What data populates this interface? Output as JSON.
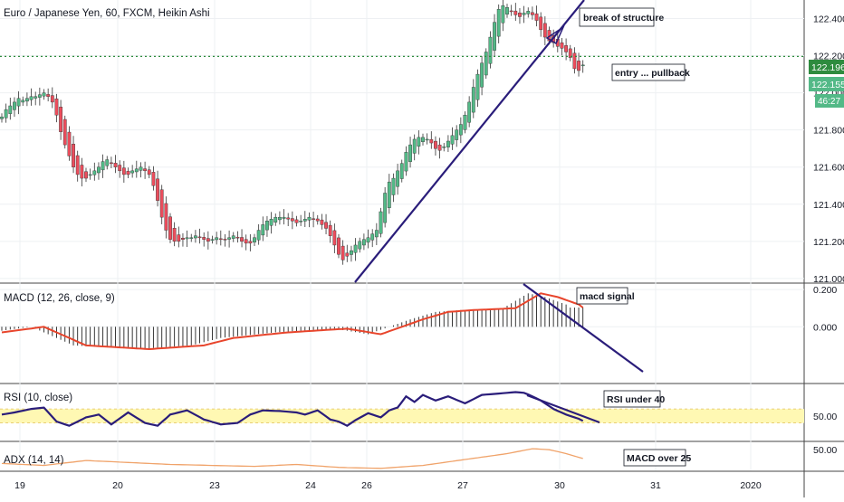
{
  "header": {
    "title": "Euro / Japanese Yen, 60, FXCM, Heikin Ashi"
  },
  "colors": {
    "bull": "#53b987",
    "bear": "#eb4d5c",
    "wick": "#333333",
    "trend": "#2a1d7a",
    "entry": "#2e8b3e",
    "macd_signal": "#e8452c",
    "rsi": "#2a1d7a",
    "rsi_band": "#fff8b3",
    "adx": "#f0a36a",
    "price_tag_entry": "#2e8b3e",
    "price_tag_last": "#53b987"
  },
  "chart_data": [
    {
      "type": "candlestick",
      "title": "Euro / Japanese Yen, 60, FXCM, Heikin Ashi",
      "ylim": [
        120.98,
        122.5
      ],
      "y_ticks": [
        "122.400",
        "122.200",
        "122.000",
        "121.800",
        "121.600",
        "121.400",
        "121.200",
        "121.000"
      ],
      "x_ticks": [
        "19",
        "20",
        "23",
        "24",
        "26",
        "27",
        "30",
        "31",
        "2020"
      ],
      "price_tags": {
        "entry": "122.196",
        "last": "122.155",
        "countdown": "46:27"
      },
      "annotations": [
        "break of structure",
        "entry ... pullback"
      ],
      "closes": [
        121.87,
        121.91,
        121.93,
        121.95,
        121.97,
        121.96,
        121.97,
        121.98,
        121.98,
        121.99,
        122.0,
        121.98,
        121.95,
        121.88,
        121.79,
        121.72,
        121.66,
        121.6,
        121.56,
        121.54,
        121.54,
        121.56,
        121.58,
        121.6,
        121.63,
        121.64,
        121.62,
        121.6,
        121.58,
        121.56,
        121.56,
        121.58,
        121.59,
        121.6,
        121.58,
        121.56,
        121.5,
        121.42,
        121.33,
        121.26,
        121.21,
        121.2,
        121.2,
        121.21,
        121.22,
        121.22,
        121.23,
        121.22,
        121.21,
        121.2,
        121.21,
        121.22,
        121.21,
        121.21,
        121.22,
        121.23,
        121.22,
        121.2,
        121.19,
        121.19,
        121.22,
        121.26,
        121.29,
        121.31,
        121.32,
        121.33,
        121.33,
        121.33,
        121.32,
        121.31,
        121.3,
        121.31,
        121.32,
        121.33,
        121.32,
        121.31,
        121.29,
        121.27,
        121.23,
        121.18,
        121.13,
        121.1,
        121.12,
        121.15,
        121.18,
        121.2,
        121.21,
        121.22,
        121.24,
        121.26,
        121.36,
        121.46,
        121.52,
        121.54,
        121.58,
        121.62,
        121.68,
        121.72,
        121.75,
        121.76,
        121.76,
        121.75,
        121.73,
        121.7,
        121.69,
        121.71,
        121.74,
        121.77,
        121.8,
        121.83,
        121.88,
        121.95,
        122.03,
        122.1,
        122.16,
        122.22,
        122.3,
        122.38,
        122.45,
        122.47,
        122.46,
        122.44,
        122.42,
        122.41,
        122.43,
        122.44,
        122.42,
        122.39,
        122.34,
        122.3,
        122.28,
        122.27,
        122.25,
        122.24,
        122.22,
        122.19,
        122.13,
        122.12,
        122.15
      ]
    },
    {
      "type": "histogram+line",
      "title": "MACD (12, 26, close, 9)",
      "ylim": [
        -0.3,
        0.23
      ],
      "y_ticks": [
        "0.200",
        "0.000"
      ],
      "annotations": [
        "macd signal"
      ],
      "signal_keyframes": [
        [
          0,
          -0.03
        ],
        [
          10,
          0.0
        ],
        [
          20,
          -0.1
        ],
        [
          35,
          -0.12
        ],
        [
          48,
          -0.1
        ],
        [
          55,
          -0.06
        ],
        [
          68,
          -0.03
        ],
        [
          82,
          -0.01
        ],
        [
          90,
          -0.04
        ],
        [
          100,
          0.04
        ],
        [
          106,
          0.08
        ],
        [
          112,
          0.09
        ],
        [
          122,
          0.1
        ],
        [
          128,
          0.18
        ],
        [
          132,
          0.16
        ],
        [
          137,
          0.12
        ],
        [
          140,
          0.07
        ]
      ]
    },
    {
      "type": "line",
      "title": "RSI (10, close)",
      "ylim": [
        15,
        95
      ],
      "y_ticks": [
        "50.00"
      ],
      "band": [
        40,
        60
      ],
      "annotations": [
        "RSI under 40"
      ],
      "keyframes": [
        [
          0,
          52
        ],
        [
          3,
          55
        ],
        [
          7,
          60
        ],
        [
          10,
          62
        ],
        [
          13,
          42
        ],
        [
          16,
          36
        ],
        [
          20,
          48
        ],
        [
          23,
          52
        ],
        [
          26,
          38
        ],
        [
          30,
          55
        ],
        [
          34,
          40
        ],
        [
          37,
          36
        ],
        [
          40,
          52
        ],
        [
          44,
          58
        ],
        [
          48,
          45
        ],
        [
          52,
          38
        ],
        [
          56,
          40
        ],
        [
          59,
          52
        ],
        [
          62,
          58
        ],
        [
          66,
          57
        ],
        [
          70,
          55
        ],
        [
          72,
          52
        ],
        [
          75,
          58
        ],
        [
          78,
          45
        ],
        [
          80,
          42
        ],
        [
          82,
          36
        ],
        [
          84,
          44
        ],
        [
          87,
          54
        ],
        [
          90,
          48
        ],
        [
          92,
          58
        ],
        [
          94,
          62
        ],
        [
          96,
          78
        ],
        [
          98,
          70
        ],
        [
          100,
          80
        ],
        [
          103,
          72
        ],
        [
          106,
          78
        ],
        [
          110,
          68
        ],
        [
          114,
          80
        ],
        [
          118,
          82
        ],
        [
          122,
          84
        ],
        [
          124,
          83
        ],
        [
          126,
          78
        ],
        [
          128,
          72
        ],
        [
          131,
          60
        ],
        [
          134,
          52
        ],
        [
          137,
          46
        ],
        [
          139,
          40
        ],
        [
          141,
          44
        ]
      ]
    },
    {
      "type": "line",
      "title": "ADX (14, 14)",
      "ylim": [
        8,
        65
      ],
      "y_ticks": [
        "50.00"
      ],
      "annotations": [
        "MACD over 25"
      ],
      "keyframes": [
        [
          0,
          22
        ],
        [
          10,
          18
        ],
        [
          20,
          28
        ],
        [
          30,
          24
        ],
        [
          40,
          20
        ],
        [
          50,
          18
        ],
        [
          60,
          16
        ],
        [
          70,
          20
        ],
        [
          80,
          14
        ],
        [
          90,
          12
        ],
        [
          100,
          18
        ],
        [
          110,
          30
        ],
        [
          120,
          42
        ],
        [
          126,
          52
        ],
        [
          130,
          50
        ],
        [
          134,
          42
        ],
        [
          138,
          32
        ],
        [
          141,
          30
        ]
      ]
    }
  ]
}
